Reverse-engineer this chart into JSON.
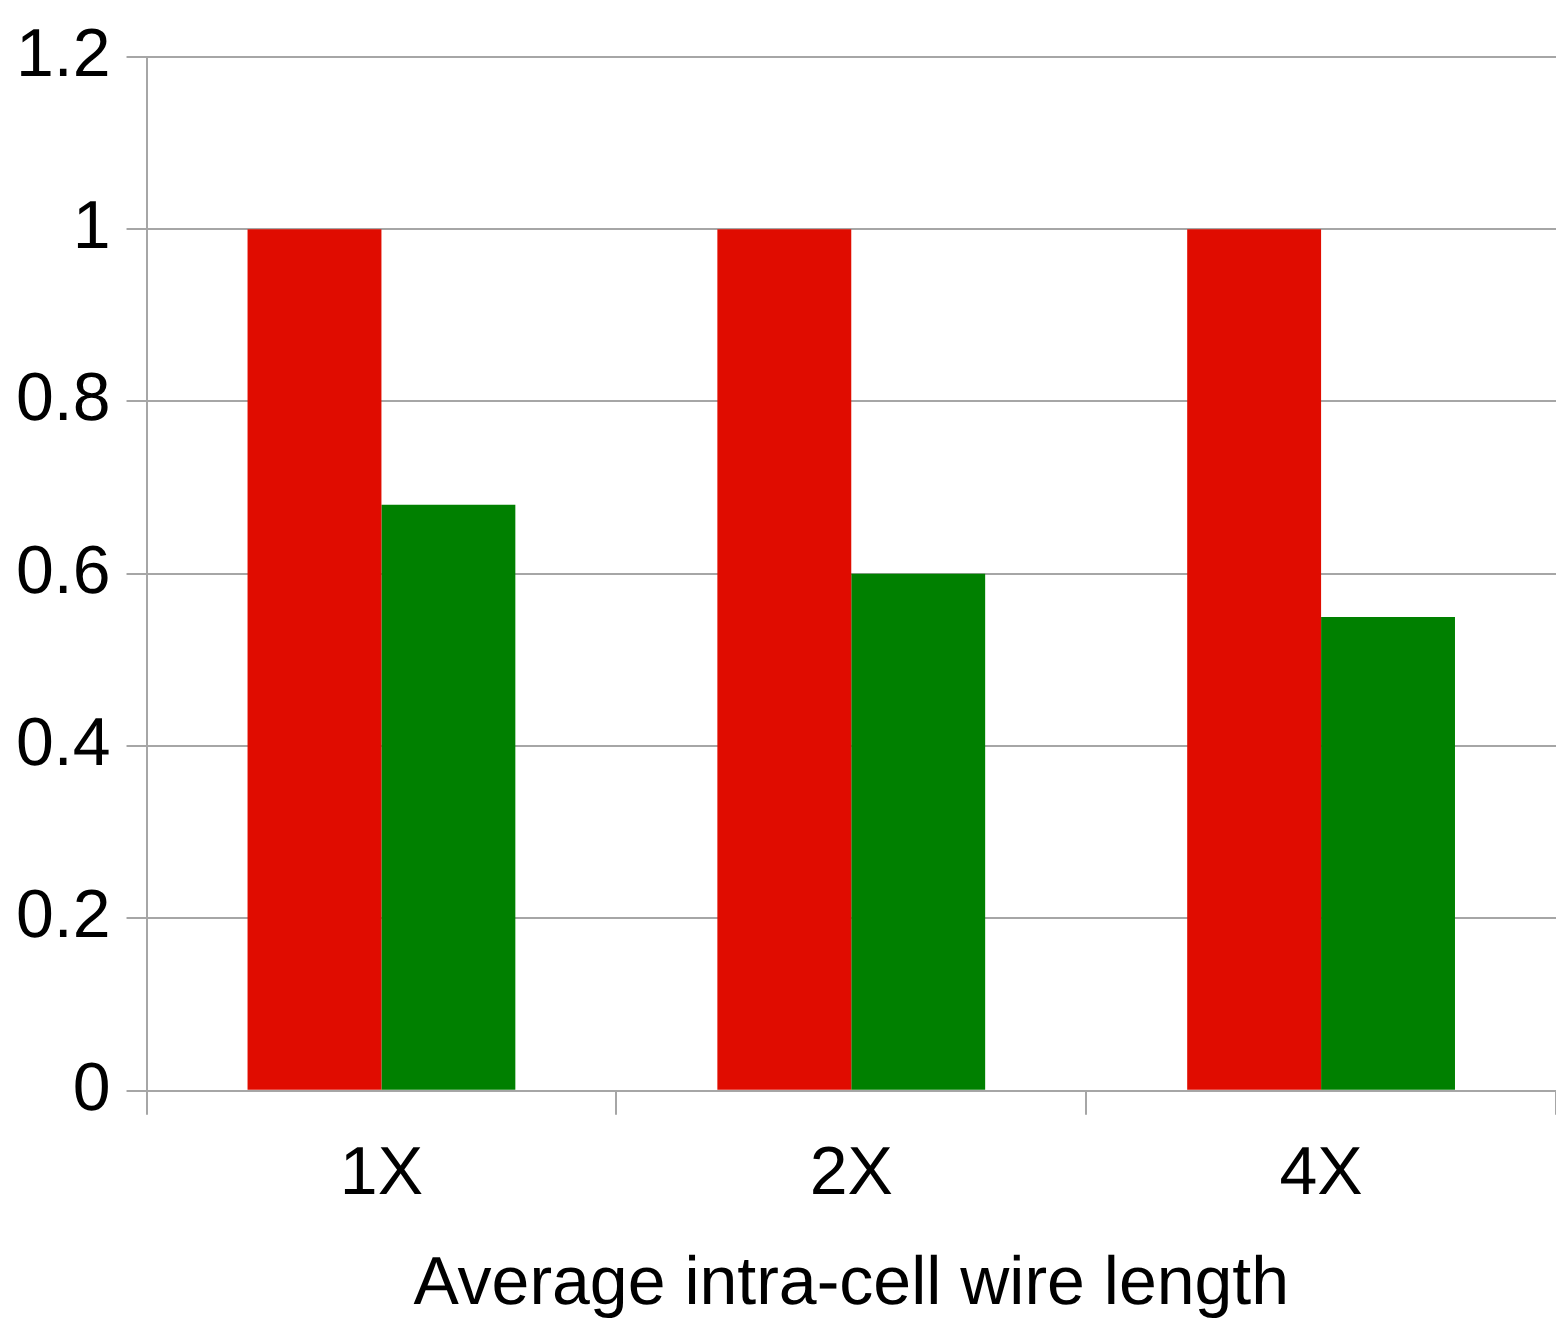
{
  "chart_data": {
    "type": "bar",
    "xlabel": "Average intra-cell wire length",
    "categories": [
      "1X",
      "2X",
      "4X"
    ],
    "series": [
      {
        "color": "#e00c00",
        "values": [
          1,
          1,
          1
        ]
      },
      {
        "color": "#008000",
        "values": [
          0.68,
          0.6,
          0.55
        ]
      }
    ],
    "ylim": [
      0,
      1.2
    ],
    "yticks": [
      0,
      0.2,
      0.4,
      0.6,
      0.8,
      1,
      1.2
    ],
    "grid": "y",
    "legend": false
  }
}
